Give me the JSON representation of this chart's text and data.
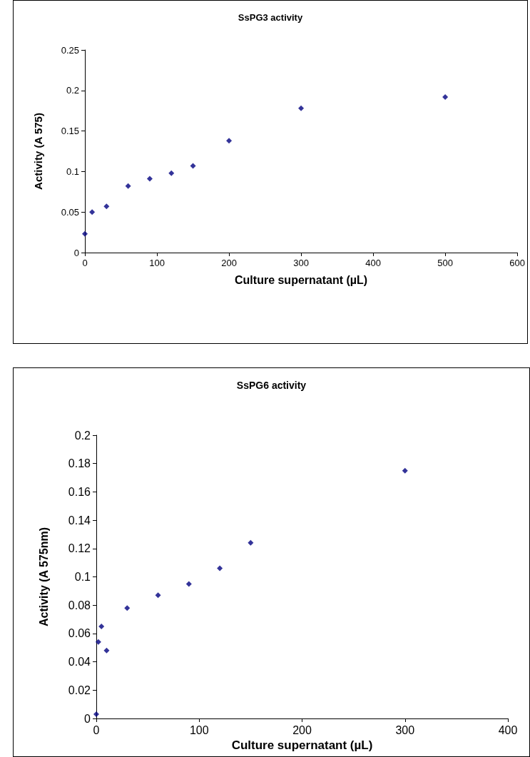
{
  "chart_data": [
    {
      "type": "scatter",
      "title": "SsPG3 activity",
      "xlabel": "Culture supernatant (µL)",
      "ylabel": "Activity (A 575)",
      "x": [
        0,
        10,
        30,
        60,
        90,
        120,
        150,
        200,
        300,
        500
      ],
      "series": [
        {
          "color": "#000080",
          "values": [
            0.023,
            0.05,
            0.057,
            0.082,
            0.091,
            0.098,
            0.107,
            0.138,
            0.178,
            0.192
          ]
        }
      ],
      "xlim": [
        0,
        600
      ],
      "xticks": [
        0,
        100,
        200,
        300,
        400,
        500,
        600
      ],
      "ylim": [
        0,
        0.25
      ],
      "yticks": [
        0,
        0.05,
        0.1,
        0.15,
        0.2,
        0.25
      ],
      "marker": "diamond",
      "grid": false
    },
    {
      "type": "scatter",
      "title": "SsPG6 activity",
      "xlabel": "Culture supernatant (µL)",
      "ylabel": "Activity (A 575nm)",
      "x": [
        0,
        2,
        5,
        10,
        30,
        60,
        90,
        120,
        150,
        300
      ],
      "series": [
        {
          "color": "#000080",
          "values": [
            0.003,
            0.054,
            0.065,
            0.048,
            0.078,
            0.087,
            0.095,
            0.106,
            0.124,
            0.175
          ]
        }
      ],
      "xlim": [
        0,
        400
      ],
      "xticks": [
        0,
        100,
        200,
        300,
        400
      ],
      "ylim": [
        0,
        0.2
      ],
      "yticks": [
        0,
        0.02,
        0.04,
        0.06,
        0.08,
        0.1,
        0.12,
        0.14,
        0.16,
        0.18,
        0.2
      ],
      "marker": "diamond",
      "grid": false
    }
  ]
}
